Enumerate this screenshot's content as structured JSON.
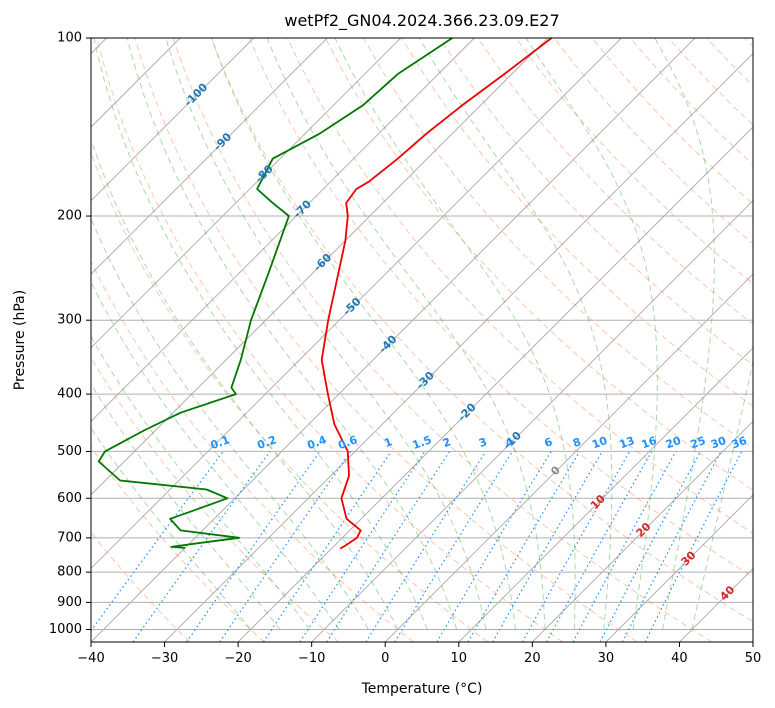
{
  "chart_data": {
    "type": "line",
    "subtype": "skew-t log-p diagram",
    "title": "wetPf2_GN04.2024.366.23.09.E27",
    "xlabel": "Temperature (°C)",
    "ylabel": "Pressure (hPa)",
    "xlim": [
      -40,
      50
    ],
    "ylim": [
      1050,
      100
    ],
    "y_scale": "log",
    "grid": true,
    "x_ticks": [
      -40,
      -30,
      -20,
      -10,
      0,
      10,
      20,
      30,
      40,
      50
    ],
    "y_ticks": [
      100,
      200,
      300,
      400,
      500,
      600,
      700,
      800,
      900,
      1000
    ],
    "series": [
      {
        "color": "#ee0000",
        "role": "temperature",
        "points": [
          [
            -59.5,
            100
          ],
          [
            -61,
            115
          ],
          [
            -62.5,
            130
          ],
          [
            -63.5,
            145
          ],
          [
            -64,
            160
          ],
          [
            -64.8,
            175
          ],
          [
            -65.5,
            180
          ],
          [
            -65,
            190
          ],
          [
            -63,
            200
          ],
          [
            -60,
            220
          ],
          [
            -56.5,
            250
          ],
          [
            -51.5,
            300
          ],
          [
            -47,
            350
          ],
          [
            -41.5,
            400
          ],
          [
            -36.5,
            450
          ],
          [
            -31,
            500
          ],
          [
            -27.5,
            550
          ],
          [
            -25.5,
            600
          ],
          [
            -22,
            650
          ],
          [
            -18.5,
            680
          ],
          [
            -18,
            700
          ],
          [
            -18.5,
            720
          ],
          [
            -18.8,
            730
          ]
        ]
      },
      {
        "color": "#007700",
        "role": "dewpoint",
        "points": [
          [
            -73,
            100
          ],
          [
            -75.5,
            115
          ],
          [
            -76,
            130
          ],
          [
            -78,
            145
          ],
          [
            -81,
            160
          ],
          [
            -79,
            180
          ],
          [
            -75,
            190
          ],
          [
            -71,
            200
          ],
          [
            -66,
            250
          ],
          [
            -62,
            300
          ],
          [
            -58,
            350
          ],
          [
            -55.5,
            390
          ],
          [
            -54,
            400
          ],
          [
            -59,
            430
          ],
          [
            -61.5,
            460
          ],
          [
            -64,
            500
          ],
          [
            -63.5,
            520
          ],
          [
            -58,
            560
          ],
          [
            -45,
            580
          ],
          [
            -41,
            600
          ],
          [
            -44,
            630
          ],
          [
            -46,
            650
          ],
          [
            -43,
            680
          ],
          [
            -34,
            700
          ],
          [
            -39,
            715
          ],
          [
            -42,
            725
          ],
          [
            -40,
            728
          ]
        ]
      }
    ],
    "isotherm_labels": [
      "-100",
      "-90",
      "-80",
      "-70",
      "-60",
      "-50",
      "-40",
      "-30",
      "-20",
      "-10",
      "0",
      "10",
      "20",
      "30",
      "40"
    ],
    "mixing_ratio_labels": [
      "0.1",
      "0.2",
      "0.4",
      "0.6",
      "1",
      "1.5",
      "2",
      "3",
      "4",
      "6",
      "8",
      "10",
      "13",
      "16",
      "20",
      "25",
      "30",
      "36"
    ],
    "colors": {
      "temperature": "#ee0000",
      "dewpoint": "#007700",
      "isotherm_cold_label": "#1f77b4",
      "isotherm_warm_label": "#d62728",
      "isotherm_zero_label": "#888888",
      "mixing_ratio": "#1e90ff",
      "dry_adiabat": "#ff7f50",
      "moist_adiabat": "#2ca02c",
      "dry_adiabat_background": "#d2b48c",
      "grid": "#b0b0b0"
    }
  }
}
